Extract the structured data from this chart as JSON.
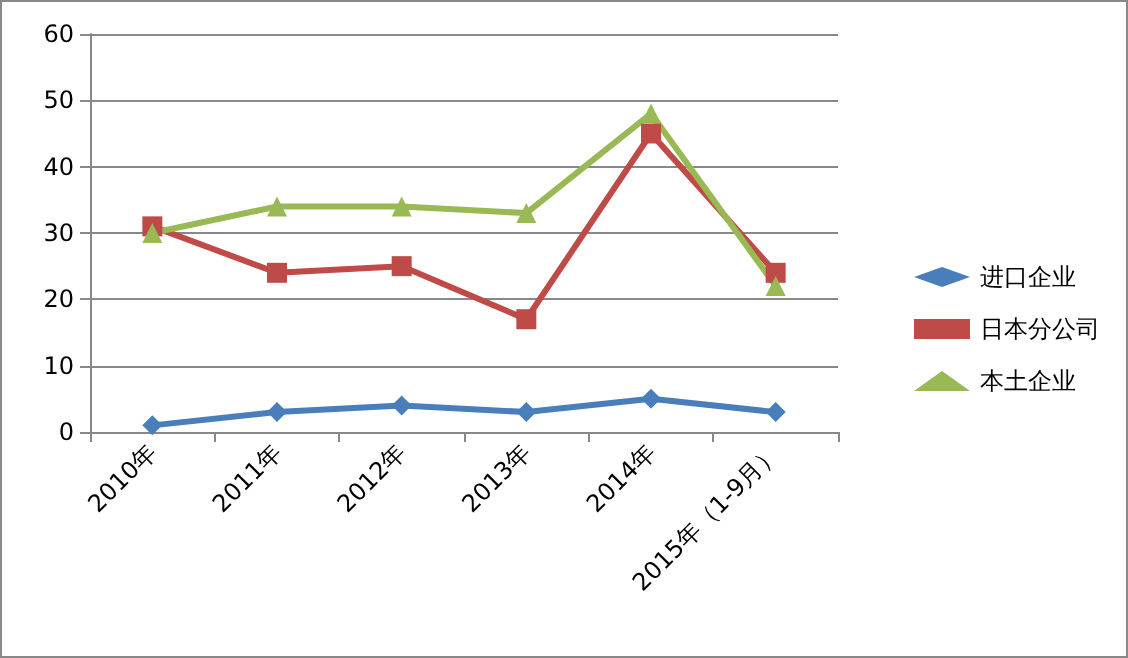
{
  "chart_data": {
    "type": "line",
    "categories": [
      "2010年",
      "2011年",
      "2012年",
      "2013年",
      "2014年",
      "2015年（1-9月）"
    ],
    "series": [
      {
        "name": "进口企业",
        "color": "#4a7ebb",
        "marker": "diamond",
        "values": [
          1,
          3,
          4,
          3,
          5,
          3
        ]
      },
      {
        "name": "日本分公司",
        "color": "#be4b48",
        "marker": "square",
        "values": [
          31,
          24,
          25,
          17,
          45,
          24
        ]
      },
      {
        "name": "本土企业",
        "color": "#98b954",
        "marker": "triangle",
        "values": [
          30,
          34,
          34,
          33,
          48,
          22
        ]
      }
    ],
    "ylim": [
      0,
      60
    ],
    "yticks": [
      0,
      10,
      20,
      30,
      40,
      50,
      60
    ],
    "grid": "y",
    "legend": "right",
    "line_style": "solid"
  }
}
